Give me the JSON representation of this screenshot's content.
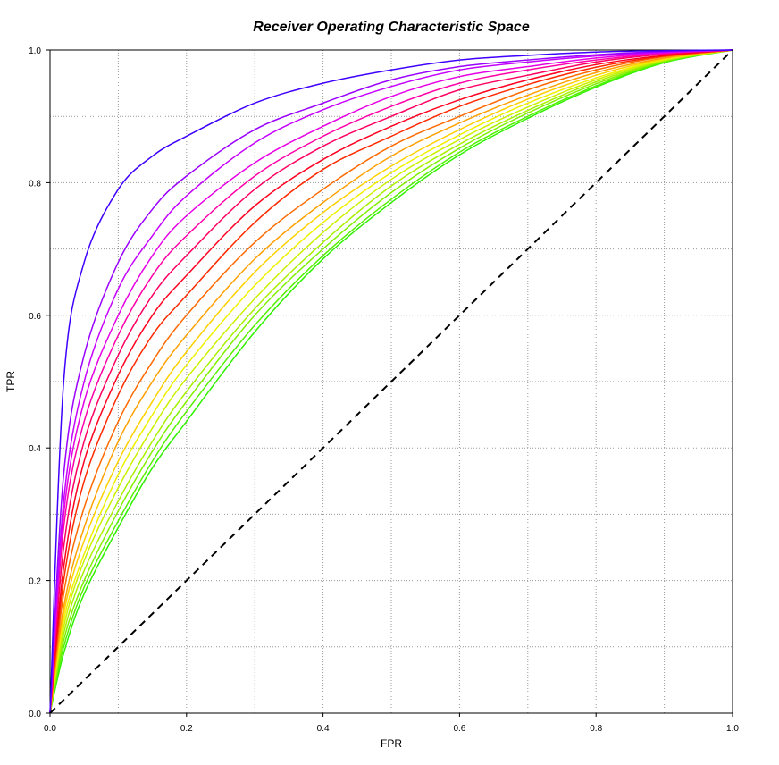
{
  "chart_data": {
    "type": "line",
    "title": "Receiver Operating Characteristic Space",
    "xlabel": "FPR",
    "ylabel": "TPR",
    "xlim": [
      0.0,
      1.0
    ],
    "ylim": [
      0.0,
      1.0
    ],
    "xticks": [
      "0.0",
      "0.2",
      "0.4",
      "0.6",
      "0.8",
      "1.0"
    ],
    "yticks": [
      "0.0",
      "0.2",
      "0.4",
      "0.6",
      "0.8",
      "1.0"
    ],
    "grid": true,
    "legend": "none",
    "diagonal": {
      "x": [
        0.0,
        1.0
      ],
      "y": [
        0.0,
        1.0
      ],
      "color": "#000000",
      "style": "dashed"
    },
    "x": [
      0.0,
      0.02,
      0.05,
      0.1,
      0.15,
      0.2,
      0.3,
      0.4,
      0.5,
      0.6,
      0.7,
      0.8,
      0.9,
      1.0
    ],
    "series": [
      {
        "color": "#3f00ff",
        "values": [
          0.0,
          0.5,
          0.68,
          0.79,
          0.84,
          0.87,
          0.92,
          0.95,
          0.97,
          0.985,
          0.992,
          0.997,
          0.999,
          1.0
        ]
      },
      {
        "color": "#9a00ff",
        "values": [
          0.0,
          0.36,
          0.54,
          0.68,
          0.76,
          0.81,
          0.88,
          0.92,
          0.955,
          0.975,
          0.985,
          0.993,
          0.998,
          1.0
        ]
      },
      {
        "color": "#c600ff",
        "values": [
          0.0,
          0.32,
          0.5,
          0.64,
          0.72,
          0.78,
          0.86,
          0.91,
          0.945,
          0.97,
          0.982,
          0.991,
          0.997,
          1.0
        ]
      },
      {
        "color": "#e600e6",
        "values": [
          0.0,
          0.3,
          0.47,
          0.6,
          0.69,
          0.75,
          0.83,
          0.885,
          0.93,
          0.96,
          0.975,
          0.988,
          0.996,
          1.0
        ]
      },
      {
        "color": "#ff00a8",
        "values": [
          0.0,
          0.28,
          0.44,
          0.57,
          0.66,
          0.72,
          0.81,
          0.87,
          0.915,
          0.95,
          0.97,
          0.985,
          0.995,
          1.0
        ]
      },
      {
        "color": "#ff0060",
        "values": [
          0.0,
          0.25,
          0.41,
          0.54,
          0.63,
          0.69,
          0.79,
          0.855,
          0.9,
          0.94,
          0.962,
          0.982,
          0.994,
          1.0
        ]
      },
      {
        "color": "#ff0020",
        "values": [
          0.0,
          0.22,
          0.38,
          0.51,
          0.6,
          0.66,
          0.765,
          0.835,
          0.885,
          0.925,
          0.955,
          0.978,
          0.992,
          1.0
        ]
      },
      {
        "color": "#ff2a00",
        "values": [
          0.0,
          0.2,
          0.35,
          0.48,
          0.57,
          0.63,
          0.74,
          0.82,
          0.87,
          0.915,
          0.948,
          0.974,
          0.991,
          1.0
        ]
      },
      {
        "color": "#ff6a00",
        "values": [
          0.0,
          0.18,
          0.31,
          0.44,
          0.53,
          0.6,
          0.71,
          0.79,
          0.855,
          0.9,
          0.94,
          0.97,
          0.99,
          1.0
        ]
      },
      {
        "color": "#ffa000",
        "values": [
          0.0,
          0.16,
          0.28,
          0.41,
          0.5,
          0.57,
          0.685,
          0.77,
          0.84,
          0.89,
          0.932,
          0.966,
          0.988,
          1.0
        ]
      },
      {
        "color": "#ffd000",
        "values": [
          0.0,
          0.15,
          0.26,
          0.38,
          0.47,
          0.545,
          0.665,
          0.755,
          0.825,
          0.88,
          0.926,
          0.962,
          0.987,
          1.0
        ]
      },
      {
        "color": "#f0f000",
        "values": [
          0.0,
          0.14,
          0.24,
          0.36,
          0.45,
          0.525,
          0.645,
          0.74,
          0.815,
          0.872,
          0.92,
          0.958,
          0.986,
          1.0
        ]
      },
      {
        "color": "#ccf000",
        "values": [
          0.0,
          0.13,
          0.23,
          0.34,
          0.43,
          0.505,
          0.625,
          0.725,
          0.805,
          0.865,
          0.914,
          0.955,
          0.985,
          1.0
        ]
      },
      {
        "color": "#a8f000",
        "values": [
          0.0,
          0.12,
          0.215,
          0.32,
          0.41,
          0.485,
          0.61,
          0.71,
          0.795,
          0.858,
          0.909,
          0.952,
          0.984,
          1.0
        ]
      },
      {
        "color": "#80f000",
        "values": [
          0.0,
          0.11,
          0.2,
          0.305,
          0.395,
          0.47,
          0.6,
          0.7,
          0.785,
          0.852,
          0.905,
          0.949,
          0.983,
          1.0
        ]
      },
      {
        "color": "#55f000",
        "values": [
          0.0,
          0.1,
          0.19,
          0.29,
          0.38,
          0.455,
          0.585,
          0.69,
          0.775,
          0.846,
          0.9,
          0.946,
          0.982,
          1.0
        ]
      },
      {
        "color": "#30f000",
        "values": [
          0.0,
          0.09,
          0.18,
          0.28,
          0.37,
          0.44,
          0.575,
          0.685,
          0.77,
          0.842,
          0.897,
          0.944,
          0.981,
          1.0
        ]
      }
    ]
  }
}
